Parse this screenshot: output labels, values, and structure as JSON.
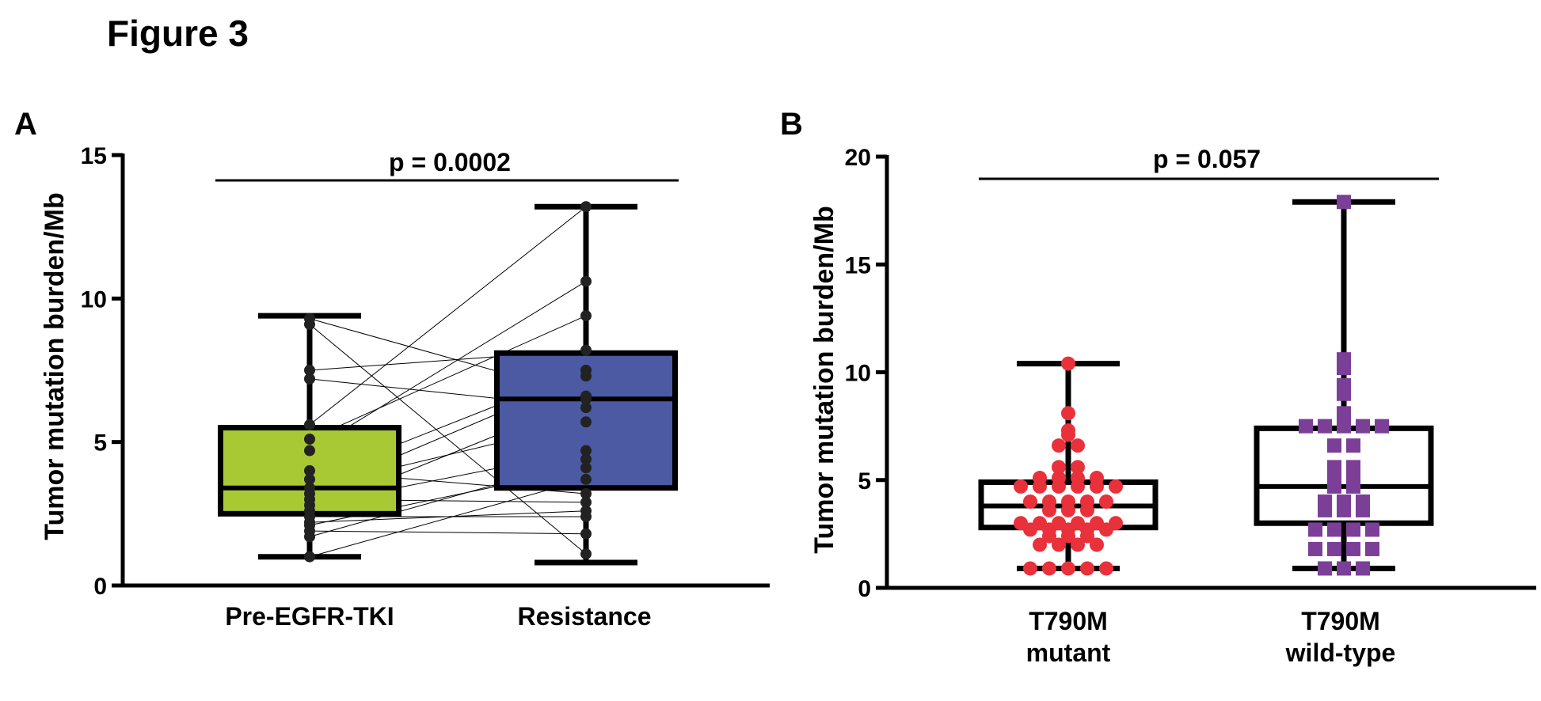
{
  "figure_title": "Figure 3",
  "chart_data": [
    {
      "panel_label": "A",
      "type": "box",
      "ylabel": "Tumor mutation burden/Mb",
      "xlabel": "",
      "ylim": [
        0,
        15
      ],
      "yticks": [
        0,
        5,
        10,
        15
      ],
      "categories": [
        "Pre-EGFR-TKI",
        "Resistance"
      ],
      "significance": "p = 0.0002",
      "colors": [
        "#a8c934",
        "#4b5aa3"
      ],
      "boxes": [
        {
          "min": 1.0,
          "q1": 2.5,
          "median": 3.4,
          "q3": 5.5,
          "max": 9.4
        },
        {
          "min": 0.8,
          "q1": 3.4,
          "median": 6.5,
          "q3": 8.1,
          "max": 13.2
        }
      ],
      "paired": [
        [
          9.3,
          6.6
        ],
        [
          9.1,
          1.1
        ],
        [
          7.5,
          8.2
        ],
        [
          7.2,
          6.2
        ],
        [
          5.6,
          13.2
        ],
        [
          5.1,
          9.4
        ],
        [
          4.7,
          10.6
        ],
        [
          4.0,
          3.2
        ],
        [
          3.7,
          7.5
        ],
        [
          3.4,
          5.7
        ],
        [
          3.2,
          7.3
        ],
        [
          3.0,
          2.9
        ],
        [
          2.8,
          4.7
        ],
        [
          2.6,
          6.5
        ],
        [
          2.4,
          2.4
        ],
        [
          2.1,
          4.1
        ],
        [
          1.9,
          1.8
        ],
        [
          1.7,
          4.4
        ],
        [
          1.0,
          3.7
        ],
        [
          2.2,
          2.6
        ]
      ]
    },
    {
      "panel_label": "B",
      "type": "box",
      "ylabel": "Tumor mutation burden/Mb",
      "xlabel": "",
      "ylim": [
        0,
        20
      ],
      "yticks": [
        0,
        5,
        10,
        15,
        20
      ],
      "categories": [
        "T790M mutant",
        "T790M wild-type"
      ],
      "significance": "p = 0.057",
      "colors": [
        "#e8313b",
        "#7b3f98"
      ],
      "boxes": [
        {
          "min": 0.9,
          "q1": 2.8,
          "median": 3.8,
          "q3": 4.9,
          "max": 10.4
        },
        {
          "min": 0.9,
          "q1": 3.0,
          "median": 4.7,
          "q3": 7.4,
          "max": 17.9
        }
      ],
      "points": [
        [
          10.4,
          8.1,
          7.3,
          7.1,
          6.6,
          6.6,
          5.6,
          5.6,
          5.1,
          5.1,
          5.1,
          5.1,
          4.7,
          4.7,
          4.7,
          4.7,
          4.7,
          4.7,
          4.0,
          4.0,
          4.0,
          4.0,
          4.0,
          3.6,
          3.6,
          3.6,
          3.0,
          3.0,
          3.0,
          3.0,
          3.0,
          3.0,
          2.7,
          2.7,
          2.7,
          2.7,
          2.7,
          2.4,
          2.4,
          2.4,
          2.0,
          2.0,
          2.0,
          2.0,
          0.9,
          0.9,
          0.9,
          0.9,
          0.9
        ],
        [
          17.9,
          10.6,
          10.2,
          9.4,
          9.0,
          9.2,
          8.1,
          7.5,
          7.5,
          7.5,
          7.5,
          7.5,
          6.6,
          6.6,
          5.6,
          5.6,
          5.1,
          5.1,
          4.7,
          4.7,
          4.0,
          4.0,
          4.0,
          3.6,
          3.6,
          3.6,
          2.7,
          2.7,
          2.7,
          2.7,
          1.8,
          1.8,
          1.8,
          1.8,
          0.9,
          0.9,
          0.9
        ]
      ]
    }
  ]
}
